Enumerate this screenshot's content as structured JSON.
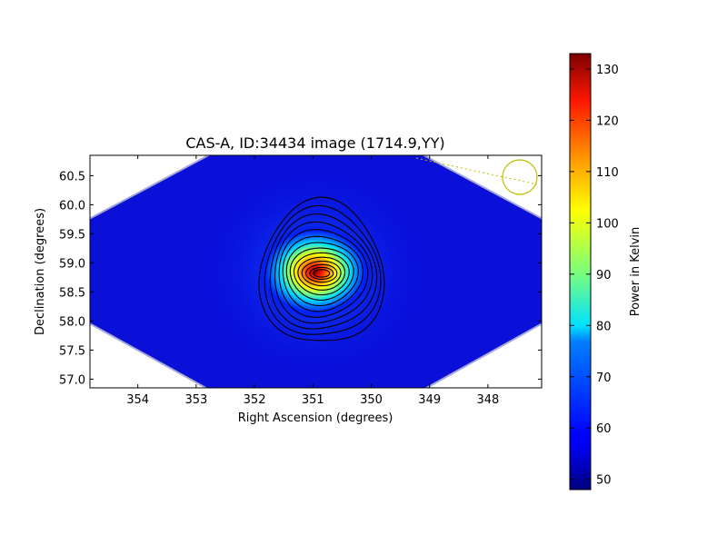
{
  "chart_data": {
    "type": "heatmap",
    "title": "CAS-A, ID:34434 image (1714.9,YY)",
    "xlabel": "Right Ascension (degrees)",
    "ylabel": "Declination (degrees)",
    "colorbar_label": "Power in Kelvin",
    "colormap": "jet",
    "xlim": [
      354.82,
      347.08
    ],
    "ylim": [
      56.85,
      60.85
    ],
    "x_inverted": true,
    "x_ticks": [
      "354",
      "353",
      "352",
      "351",
      "350",
      "349",
      "348"
    ],
    "y_ticks": [
      "57.0",
      "57.5",
      "58.0",
      "58.5",
      "59.0",
      "59.5",
      "60.0",
      "60.5"
    ],
    "colorbar_range": [
      48,
      133
    ],
    "colorbar_ticks": [
      "50",
      "60",
      "70",
      "80",
      "90",
      "100",
      "110",
      "120",
      "130"
    ],
    "source_peak": {
      "ra": 350.85,
      "dec": 58.82,
      "value": 133
    },
    "background_level": 52,
    "contour_count": 14,
    "beam_marker": {
      "ra": 347.45,
      "dec": 60.47,
      "color": "#bfbf00"
    },
    "grid": false
  }
}
